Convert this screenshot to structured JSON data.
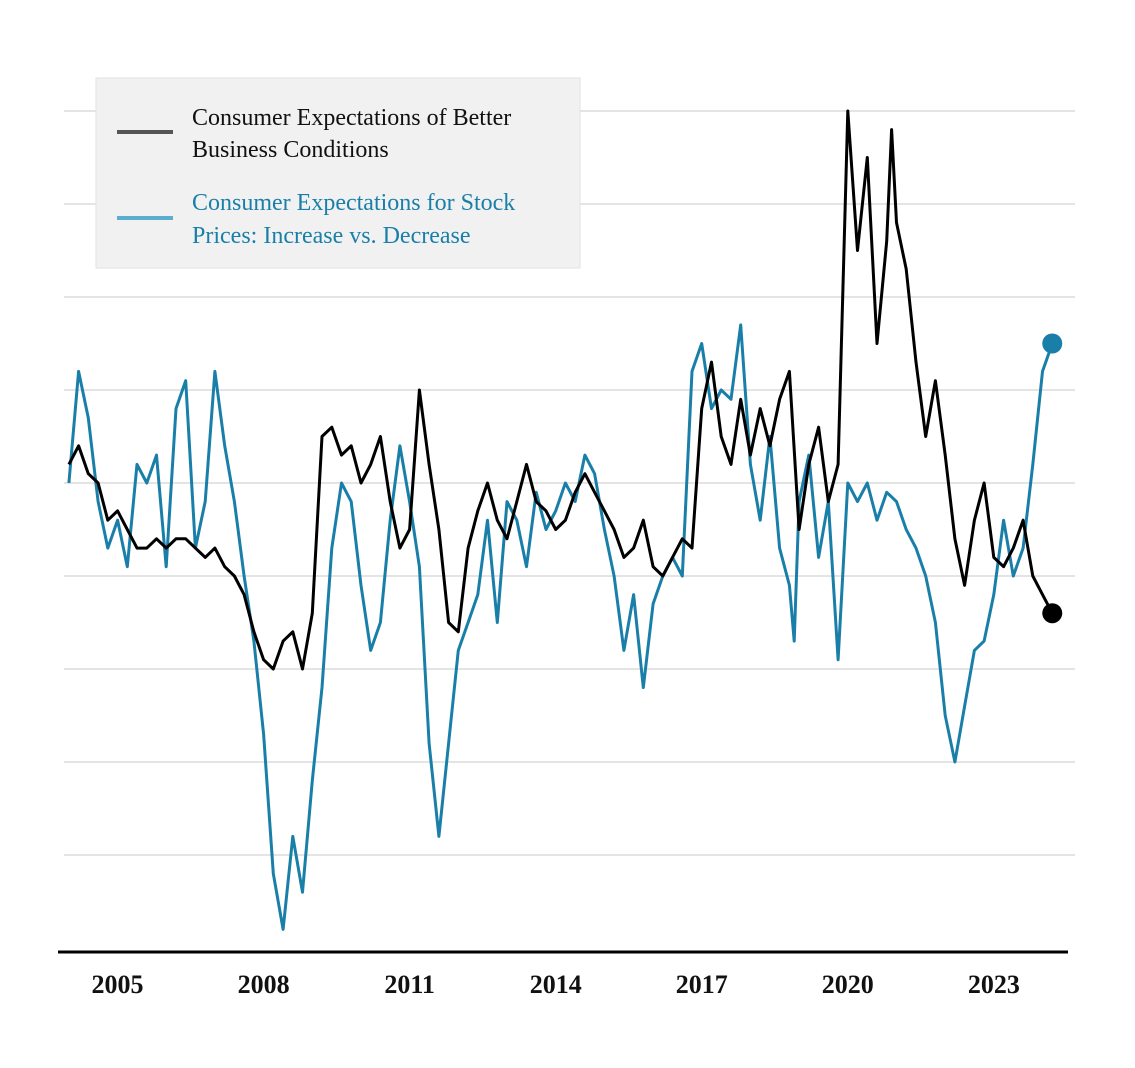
{
  "chart_data": {
    "type": "line",
    "title": "",
    "xlabel": "",
    "ylabel": "",
    "grid": true,
    "legend_position": "top-left",
    "x_tick_labels": [
      "2005",
      "2008",
      "2011",
      "2014",
      "2017",
      "2020",
      "2023"
    ],
    "xlim": [
      2003.9,
      2024.4
    ],
    "ylim": [
      0,
      10
    ],
    "series": [
      {
        "name": "Consumer Expectations of Better Business Conditions",
        "legend_lines": [
          "Consumer Expectations of Better",
          "Business Conditions"
        ],
        "color": "#000000",
        "points": [
          [
            2004.0,
            5.2
          ],
          [
            2004.2,
            5.4
          ],
          [
            2004.4,
            5.1
          ],
          [
            2004.6,
            5.0
          ],
          [
            2004.8,
            4.6
          ],
          [
            2005.0,
            4.7
          ],
          [
            2005.2,
            4.5
          ],
          [
            2005.4,
            4.3
          ],
          [
            2005.6,
            4.3
          ],
          [
            2005.8,
            4.4
          ],
          [
            2006.0,
            4.3
          ],
          [
            2006.2,
            4.4
          ],
          [
            2006.4,
            4.4
          ],
          [
            2006.6,
            4.3
          ],
          [
            2006.8,
            4.2
          ],
          [
            2007.0,
            4.3
          ],
          [
            2007.2,
            4.1
          ],
          [
            2007.4,
            4.0
          ],
          [
            2007.6,
            3.8
          ],
          [
            2007.8,
            3.4
          ],
          [
            2008.0,
            3.1
          ],
          [
            2008.2,
            3.0
          ],
          [
            2008.4,
            3.3
          ],
          [
            2008.6,
            3.4
          ],
          [
            2008.8,
            3.0
          ],
          [
            2009.0,
            3.6
          ],
          [
            2009.2,
            5.5
          ],
          [
            2009.4,
            5.6
          ],
          [
            2009.6,
            5.3
          ],
          [
            2009.8,
            5.4
          ],
          [
            2010.0,
            5.0
          ],
          [
            2010.2,
            5.2
          ],
          [
            2010.4,
            5.5
          ],
          [
            2010.6,
            4.8
          ],
          [
            2010.8,
            4.3
          ],
          [
            2011.0,
            4.5
          ],
          [
            2011.2,
            6.0
          ],
          [
            2011.4,
            5.2
          ],
          [
            2011.6,
            4.5
          ],
          [
            2011.8,
            3.5
          ],
          [
            2012.0,
            3.4
          ],
          [
            2012.2,
            4.3
          ],
          [
            2012.4,
            4.7
          ],
          [
            2012.6,
            5.0
          ],
          [
            2012.8,
            4.6
          ],
          [
            2013.0,
            4.4
          ],
          [
            2013.2,
            4.8
          ],
          [
            2013.4,
            5.2
          ],
          [
            2013.6,
            4.8
          ],
          [
            2013.8,
            4.7
          ],
          [
            2014.0,
            4.5
          ],
          [
            2014.2,
            4.6
          ],
          [
            2014.4,
            4.9
          ],
          [
            2014.6,
            5.1
          ],
          [
            2014.8,
            4.9
          ],
          [
            2015.0,
            4.7
          ],
          [
            2015.2,
            4.5
          ],
          [
            2015.4,
            4.2
          ],
          [
            2015.6,
            4.3
          ],
          [
            2015.8,
            4.6
          ],
          [
            2016.0,
            4.1
          ],
          [
            2016.2,
            4.0
          ],
          [
            2016.4,
            4.2
          ],
          [
            2016.6,
            4.4
          ],
          [
            2016.8,
            4.3
          ],
          [
            2017.0,
            5.8
          ],
          [
            2017.2,
            6.3
          ],
          [
            2017.4,
            5.5
          ],
          [
            2017.6,
            5.2
          ],
          [
            2017.8,
            5.9
          ],
          [
            2018.0,
            5.3
          ],
          [
            2018.2,
            5.8
          ],
          [
            2018.4,
            5.4
          ],
          [
            2018.6,
            5.9
          ],
          [
            2018.8,
            6.2
          ],
          [
            2019.0,
            4.5
          ],
          [
            2019.2,
            5.2
          ],
          [
            2019.4,
            5.6
          ],
          [
            2019.6,
            4.8
          ],
          [
            2019.8,
            5.2
          ],
          [
            2020.0,
            9.0
          ],
          [
            2020.2,
            7.5
          ],
          [
            2020.4,
            8.5
          ],
          [
            2020.6,
            6.5
          ],
          [
            2020.8,
            7.6
          ],
          [
            2020.9,
            8.8
          ],
          [
            2021.0,
            7.8
          ],
          [
            2021.2,
            7.3
          ],
          [
            2021.4,
            6.3
          ],
          [
            2021.6,
            5.5
          ],
          [
            2021.8,
            6.1
          ],
          [
            2022.0,
            5.3
          ],
          [
            2022.2,
            4.4
          ],
          [
            2022.4,
            3.9
          ],
          [
            2022.6,
            4.6
          ],
          [
            2022.8,
            5.0
          ],
          [
            2023.0,
            4.2
          ],
          [
            2023.2,
            4.1
          ],
          [
            2023.4,
            4.3
          ],
          [
            2023.6,
            4.6
          ],
          [
            2023.8,
            4.0
          ],
          [
            2024.0,
            3.8
          ],
          [
            2024.2,
            3.6
          ]
        ]
      },
      {
        "name": "Consumer Expectations for Stock Prices: Increase vs. Decrease",
        "legend_lines": [
          "Consumer Expectations for Stock",
          "Prices: Increase vs. Decrease"
        ],
        "color": "#1a7fa8",
        "points": [
          [
            2004.0,
            5.0
          ],
          [
            2004.2,
            6.2
          ],
          [
            2004.4,
            5.7
          ],
          [
            2004.6,
            4.8
          ],
          [
            2004.8,
            4.3
          ],
          [
            2005.0,
            4.6
          ],
          [
            2005.2,
            4.1
          ],
          [
            2005.4,
            5.2
          ],
          [
            2005.6,
            5.0
          ],
          [
            2005.8,
            5.3
          ],
          [
            2006.0,
            4.1
          ],
          [
            2006.2,
            5.8
          ],
          [
            2006.4,
            6.1
          ],
          [
            2006.6,
            4.3
          ],
          [
            2006.8,
            4.8
          ],
          [
            2007.0,
            6.2
          ],
          [
            2007.2,
            5.4
          ],
          [
            2007.4,
            4.8
          ],
          [
            2007.6,
            4.0
          ],
          [
            2007.8,
            3.3
          ],
          [
            2008.0,
            2.3
          ],
          [
            2008.2,
            0.8
          ],
          [
            2008.4,
            0.2
          ],
          [
            2008.6,
            1.2
          ],
          [
            2008.8,
            0.6
          ],
          [
            2009.0,
            1.8
          ],
          [
            2009.2,
            2.8
          ],
          [
            2009.4,
            4.3
          ],
          [
            2009.6,
            5.0
          ],
          [
            2009.8,
            4.8
          ],
          [
            2010.0,
            3.9
          ],
          [
            2010.2,
            3.2
          ],
          [
            2010.4,
            3.5
          ],
          [
            2010.6,
            4.6
          ],
          [
            2010.8,
            5.4
          ],
          [
            2011.0,
            4.8
          ],
          [
            2011.2,
            4.1
          ],
          [
            2011.4,
            2.2
          ],
          [
            2011.6,
            1.2
          ],
          [
            2011.8,
            2.2
          ],
          [
            2012.0,
            3.2
          ],
          [
            2012.2,
            3.5
          ],
          [
            2012.4,
            3.8
          ],
          [
            2012.6,
            4.6
          ],
          [
            2012.8,
            3.5
          ],
          [
            2013.0,
            4.8
          ],
          [
            2013.2,
            4.6
          ],
          [
            2013.4,
            4.1
          ],
          [
            2013.6,
            4.9
          ],
          [
            2013.8,
            4.5
          ],
          [
            2014.0,
            4.7
          ],
          [
            2014.2,
            5.0
          ],
          [
            2014.4,
            4.8
          ],
          [
            2014.6,
            5.3
          ],
          [
            2014.8,
            5.1
          ],
          [
            2015.0,
            4.5
          ],
          [
            2015.2,
            4.0
          ],
          [
            2015.4,
            3.2
          ],
          [
            2015.6,
            3.8
          ],
          [
            2015.8,
            2.8
          ],
          [
            2016.0,
            3.7
          ],
          [
            2016.2,
            4.0
          ],
          [
            2016.4,
            4.2
          ],
          [
            2016.6,
            4.0
          ],
          [
            2016.8,
            6.2
          ],
          [
            2017.0,
            6.5
          ],
          [
            2017.2,
            5.8
          ],
          [
            2017.4,
            6.0
          ],
          [
            2017.6,
            5.9
          ],
          [
            2017.8,
            6.7
          ],
          [
            2018.0,
            5.2
          ],
          [
            2018.2,
            4.6
          ],
          [
            2018.4,
            5.5
          ],
          [
            2018.6,
            4.3
          ],
          [
            2018.8,
            3.9
          ],
          [
            2018.9,
            3.3
          ],
          [
            2019.0,
            4.8
          ],
          [
            2019.2,
            5.3
          ],
          [
            2019.4,
            4.2
          ],
          [
            2019.6,
            4.8
          ],
          [
            2019.8,
            3.1
          ],
          [
            2020.0,
            5.0
          ],
          [
            2020.2,
            4.8
          ],
          [
            2020.4,
            5.0
          ],
          [
            2020.6,
            4.6
          ],
          [
            2020.8,
            4.9
          ],
          [
            2021.0,
            4.8
          ],
          [
            2021.2,
            4.5
          ],
          [
            2021.4,
            4.3
          ],
          [
            2021.6,
            4.0
          ],
          [
            2021.8,
            3.5
          ],
          [
            2022.0,
            2.5
          ],
          [
            2022.2,
            2.0
          ],
          [
            2022.4,
            2.6
          ],
          [
            2022.6,
            3.2
          ],
          [
            2022.8,
            3.3
          ],
          [
            2023.0,
            3.8
          ],
          [
            2023.2,
            4.6
          ],
          [
            2023.4,
            4.0
          ],
          [
            2023.6,
            4.3
          ],
          [
            2023.8,
            5.2
          ],
          [
            2024.0,
            6.2
          ],
          [
            2024.2,
            6.5
          ]
        ]
      }
    ]
  }
}
